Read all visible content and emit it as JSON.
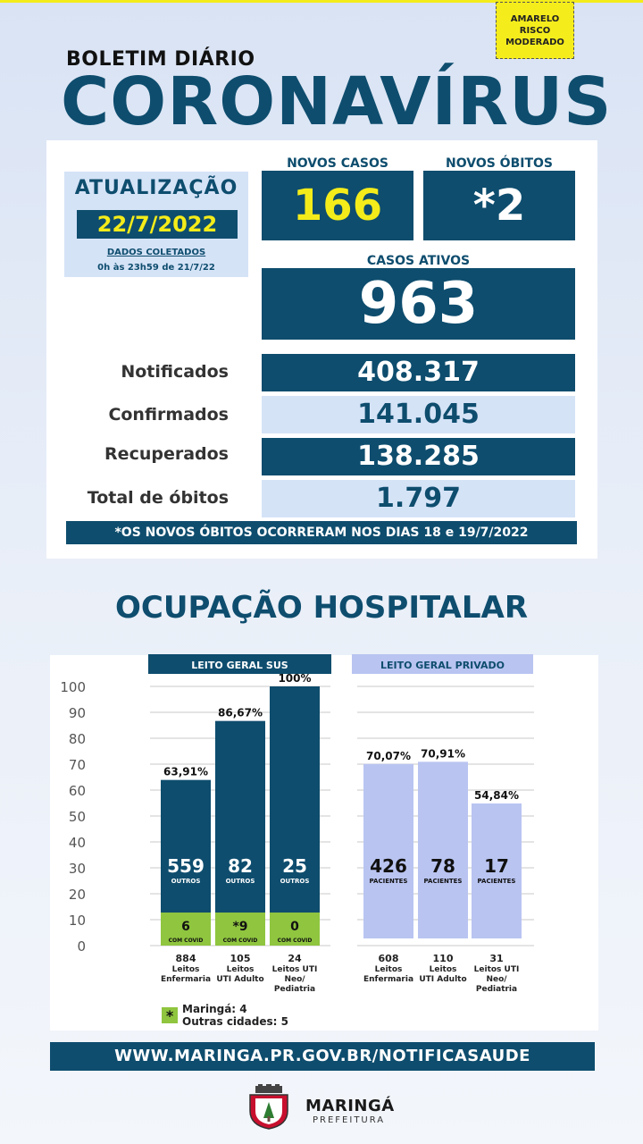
{
  "risk_badge": {
    "line1": "AMARELO",
    "line2": "RISCO",
    "line3": "MODERADO"
  },
  "header": {
    "subtitle": "BOLETIM DIÁRIO",
    "title": "CORONAVÍRUS"
  },
  "update": {
    "label": "ATUALIZAÇÃO",
    "date": "22/7/2022",
    "collected_label": "DADOS COLETADOS",
    "collected_range": "0h às 23h59 de 21/7/22"
  },
  "new_cases": {
    "label": "NOVOS CASOS",
    "value": "166"
  },
  "new_deaths": {
    "label": "NOVOS ÓBITOS",
    "value": "*2"
  },
  "active_cases": {
    "label": "CASOS ATIVOS",
    "value": "963"
  },
  "stats": [
    {
      "label": "Notificados",
      "value": "408.317"
    },
    {
      "label": "Confirmados",
      "value": "141.045"
    },
    {
      "label": "Recuperados",
      "value": "138.285"
    },
    {
      "label": "Total de óbitos",
      "value": "1.797"
    }
  ],
  "note": "*OS NOVOS  ÓBITOS OCORRERAM NOS DIAS 18 e 19/7/2022",
  "hospital_title": "OCUPAÇÃO HOSPITALAR",
  "colors": {
    "dark_blue": "#0e4d6e",
    "light_blue": "#d5e3f7",
    "yellow": "#f4ec1a",
    "green": "#8fc53f",
    "lavender": "#b9c4f1"
  },
  "chart_data": {
    "type": "bar",
    "ylim": [
      0,
      100
    ],
    "yticks": [
      "0",
      "10",
      "20",
      "30",
      "40",
      "50",
      "60",
      "70",
      "80",
      "90",
      "100"
    ],
    "grid": true,
    "groups": [
      {
        "title": "LEITO GERAL SUS",
        "bars": [
          {
            "value": 63.91,
            "pct_label": "63,91%",
            "others": "559",
            "others_label": "OUTROS",
            "covid": "6",
            "covid_label": "COM COVID",
            "beds": "884",
            "type_line1": "Leitos",
            "type_line2": "Enfermaria",
            "type_line3": ""
          },
          {
            "value": 86.67,
            "pct_label": "86,67%",
            "others": "82",
            "others_label": "OUTROS",
            "covid": "*9",
            "covid_label": "COM COVID",
            "beds": "105",
            "type_line1": "Leitos",
            "type_line2": "UTI Adulto",
            "type_line3": ""
          },
          {
            "value": 100,
            "pct_label": "100%",
            "others": "25",
            "others_label": "OUTROS",
            "covid": "0",
            "covid_label": "COM COVID",
            "beds": "24",
            "type_line1": "Leitos UTI",
            "type_line2": "Neo/",
            "type_line3": "Pediatria"
          }
        ]
      },
      {
        "title": "LEITO GERAL PRIVADO",
        "bars": [
          {
            "value": 70.07,
            "pct_label": "70,07%",
            "patients": "426",
            "patients_label": "PACIENTES",
            "beds": "608",
            "type_line1": "Leitos",
            "type_line2": "Enfermaria",
            "type_line3": ""
          },
          {
            "value": 70.91,
            "pct_label": "70,91%",
            "patients": "78",
            "patients_label": "PACIENTES",
            "beds": "110",
            "type_line1": "Leitos",
            "type_line2": "UTI Adulto",
            "type_line3": ""
          },
          {
            "value": 54.84,
            "pct_label": "54,84%",
            "patients": "17",
            "patients_label": "PACIENTES",
            "beds": "31",
            "type_line1": "Leitos UTI",
            "type_line2": "Neo/",
            "type_line3": "Pediatria"
          }
        ]
      }
    ]
  },
  "legend": {
    "symbol": "*",
    "line1": "Maringá: 4",
    "line2": "Outras cidades: 5"
  },
  "footer": {
    "url": "WWW.MARINGA.PR.GOV.BR/NOTIFICASAUDE",
    "logo_name": "MARINGÁ",
    "logo_sub": "PREFEITURA"
  }
}
